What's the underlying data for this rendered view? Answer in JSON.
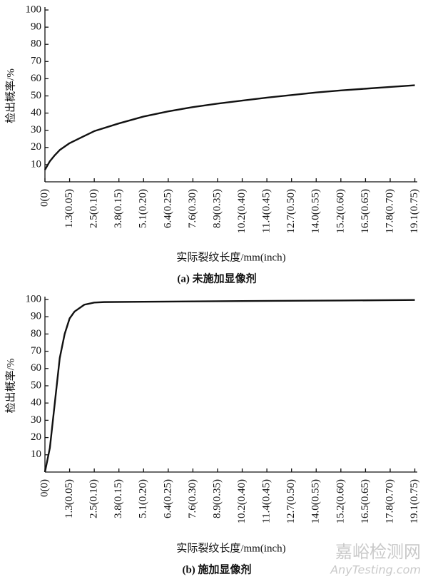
{
  "chart_data": [
    {
      "type": "line",
      "caption": "(a) 未施加显像剂",
      "xlabel": "实际裂纹长度/mm(inch)",
      "ylabel": "检出概率/%",
      "x": [
        0,
        0.01,
        0.02,
        0.03,
        0.05,
        0.075,
        0.1,
        0.15,
        0.2,
        0.25,
        0.3,
        0.35,
        0.4,
        0.45,
        0.5,
        0.55,
        0.6,
        0.65,
        0.7,
        0.75
      ],
      "series": [
        {
          "color": "#111111",
          "values": [
            7,
            12,
            15.5,
            18.5,
            22.5,
            26,
            29.5,
            34,
            38,
            41,
            43.5,
            45.5,
            47.3,
            49,
            50.5,
            52,
            53.2,
            54.2,
            55.2,
            56.2
          ]
        }
      ],
      "xlim": [
        0,
        0.755
      ],
      "ylim": [
        0,
        100
      ],
      "xticks": [
        {
          "value": 0,
          "label": "0(0)"
        },
        {
          "value": 0.05,
          "label": "1.3(0.05)"
        },
        {
          "value": 0.1,
          "label": "2.5(0.10)"
        },
        {
          "value": 0.15,
          "label": "3.8(0.15)"
        },
        {
          "value": 0.2,
          "label": "5.1(0.20)"
        },
        {
          "value": 0.25,
          "label": "6.4(0.25)"
        },
        {
          "value": 0.3,
          "label": "7.6(0.30)"
        },
        {
          "value": 0.35,
          "label": "8.9(0.35)"
        },
        {
          "value": 0.4,
          "label": "10.2(0.40)"
        },
        {
          "value": 0.45,
          "label": "11.4(0.45)"
        },
        {
          "value": 0.5,
          "label": "12.7(0.50)"
        },
        {
          "value": 0.55,
          "label": "14.0(0.55)"
        },
        {
          "value": 0.6,
          "label": "15.2(0.60)"
        },
        {
          "value": 0.65,
          "label": "16.5(0.65)"
        },
        {
          "value": 0.7,
          "label": "17.8(0.70)"
        },
        {
          "value": 0.75,
          "label": "19.1(0.75)"
        }
      ],
      "yticks": [
        10,
        20,
        30,
        40,
        50,
        60,
        70,
        80,
        90,
        100
      ]
    },
    {
      "type": "line",
      "caption": "(b) 施加显像剂",
      "xlabel": "实际裂纹长度/mm(inch)",
      "ylabel": "检出概率/%",
      "x": [
        0,
        0.01,
        0.02,
        0.03,
        0.04,
        0.05,
        0.06,
        0.08,
        0.1,
        0.12,
        0.2,
        0.4,
        0.6,
        0.75
      ],
      "series": [
        {
          "color": "#111111",
          "values": [
            0,
            14,
            40,
            66,
            80,
            89,
            93,
            97,
            98.2,
            98.5,
            98.7,
            99.1,
            99.4,
            99.7
          ]
        }
      ],
      "xlim": [
        0,
        0.755
      ],
      "ylim": [
        0,
        100
      ],
      "xticks": [
        {
          "value": 0,
          "label": "0(0)"
        },
        {
          "value": 0.05,
          "label": "1.3(0.05)"
        },
        {
          "value": 0.1,
          "label": "2.5(0.10)"
        },
        {
          "value": 0.15,
          "label": "3.8(0.15)"
        },
        {
          "value": 0.2,
          "label": "5.1(0.20)"
        },
        {
          "value": 0.25,
          "label": "6.4(0.25)"
        },
        {
          "value": 0.3,
          "label": "7.6(0.30)"
        },
        {
          "value": 0.35,
          "label": "8.9(0.35)"
        },
        {
          "value": 0.4,
          "label": "10.2(0.40)"
        },
        {
          "value": 0.45,
          "label": "11.4(0.45)"
        },
        {
          "value": 0.5,
          "label": "12.7(0.50)"
        },
        {
          "value": 0.55,
          "label": "14.0(0.55)"
        },
        {
          "value": 0.6,
          "label": "15.2(0.60)"
        },
        {
          "value": 0.65,
          "label": "16.5(0.65)"
        },
        {
          "value": 0.7,
          "label": "17.8(0.70)"
        },
        {
          "value": 0.75,
          "label": "19.1(0.75)"
        }
      ],
      "yticks": [
        10,
        20,
        30,
        40,
        50,
        60,
        70,
        80,
        90,
        100
      ]
    }
  ],
  "watermark": {
    "name": "嘉峪检测网",
    "site": "AnyTesting.com"
  }
}
